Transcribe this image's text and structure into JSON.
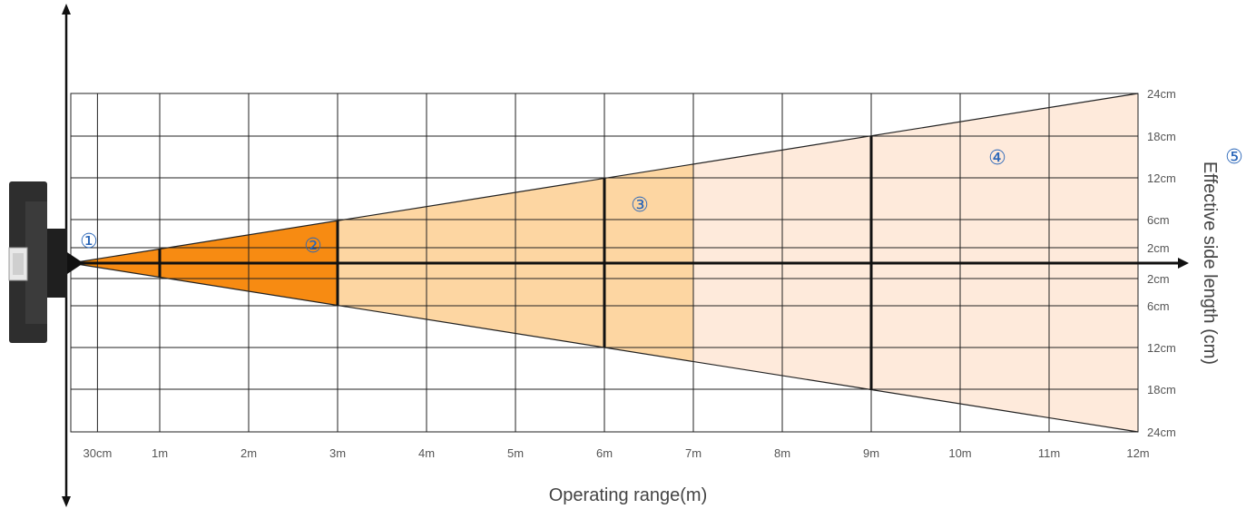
{
  "x_axis": {
    "title": "Operating range(m)",
    "ticks": [
      {
        "label": "30cm",
        "value": 0.3
      },
      {
        "label": "1m",
        "value": 1
      },
      {
        "label": "2m",
        "value": 2
      },
      {
        "label": "3m",
        "value": 3
      },
      {
        "label": "4m",
        "value": 4
      },
      {
        "label": "5m",
        "value": 5
      },
      {
        "label": "6m",
        "value": 6
      },
      {
        "label": "7m",
        "value": 7
      },
      {
        "label": "8m",
        "value": 8
      },
      {
        "label": "9m",
        "value": 9
      },
      {
        "label": "10m",
        "value": 10
      },
      {
        "label": "11m",
        "value": 11
      },
      {
        "label": "12m",
        "value": 12
      }
    ]
  },
  "y_axis": {
    "title": "Effective side length (cm)",
    "title_marker": "⑤",
    "ticks": [
      {
        "label": "24cm",
        "value": 24
      },
      {
        "label": "18cm",
        "value": 18
      },
      {
        "label": "12cm",
        "value": 12
      },
      {
        "label": "6cm",
        "value": 6
      },
      {
        "label": "2cm",
        "value": 2
      },
      {
        "label": "2cm",
        "value": -2
      },
      {
        "label": "6cm",
        "value": -6
      },
      {
        "label": "12cm",
        "value": -12
      },
      {
        "label": "18cm",
        "value": -18
      },
      {
        "label": "24cm",
        "value": -24
      }
    ]
  },
  "zones": [
    {
      "marker": "①",
      "from_m": 0.0,
      "to_m": 0.3,
      "color": "#f08200"
    },
    {
      "marker": "②",
      "from_m": 0.3,
      "to_m": 3,
      "color": "#f78b12"
    },
    {
      "marker": "③",
      "from_m": 3,
      "to_m": 7,
      "color": "#fdd6a2"
    },
    {
      "marker": "④",
      "from_m": 7,
      "to_m": 12,
      "color": "#feeadb"
    }
  ],
  "beam": {
    "range_m": 12,
    "half_width_at_max_cm": 24
  },
  "colors": {
    "marker": "#2a66b8",
    "grid": "#222222",
    "axis": "#111111",
    "device": "#2e2e2e"
  }
}
